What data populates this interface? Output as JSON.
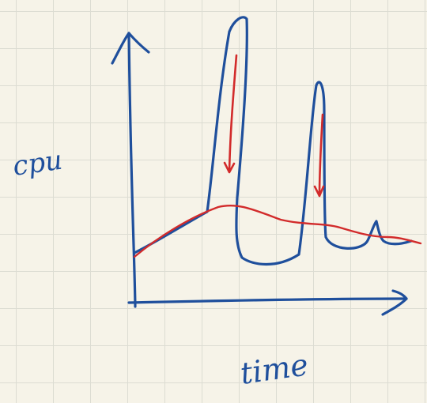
{
  "diagram": {
    "y_axis_label": "cpu",
    "x_axis_label": "time",
    "colors": {
      "ink_blue": "#1f4f9c",
      "ink_red": "#d22b2b",
      "grid": "#dcdcd2",
      "paper": "#f6f3e8"
    }
  }
}
